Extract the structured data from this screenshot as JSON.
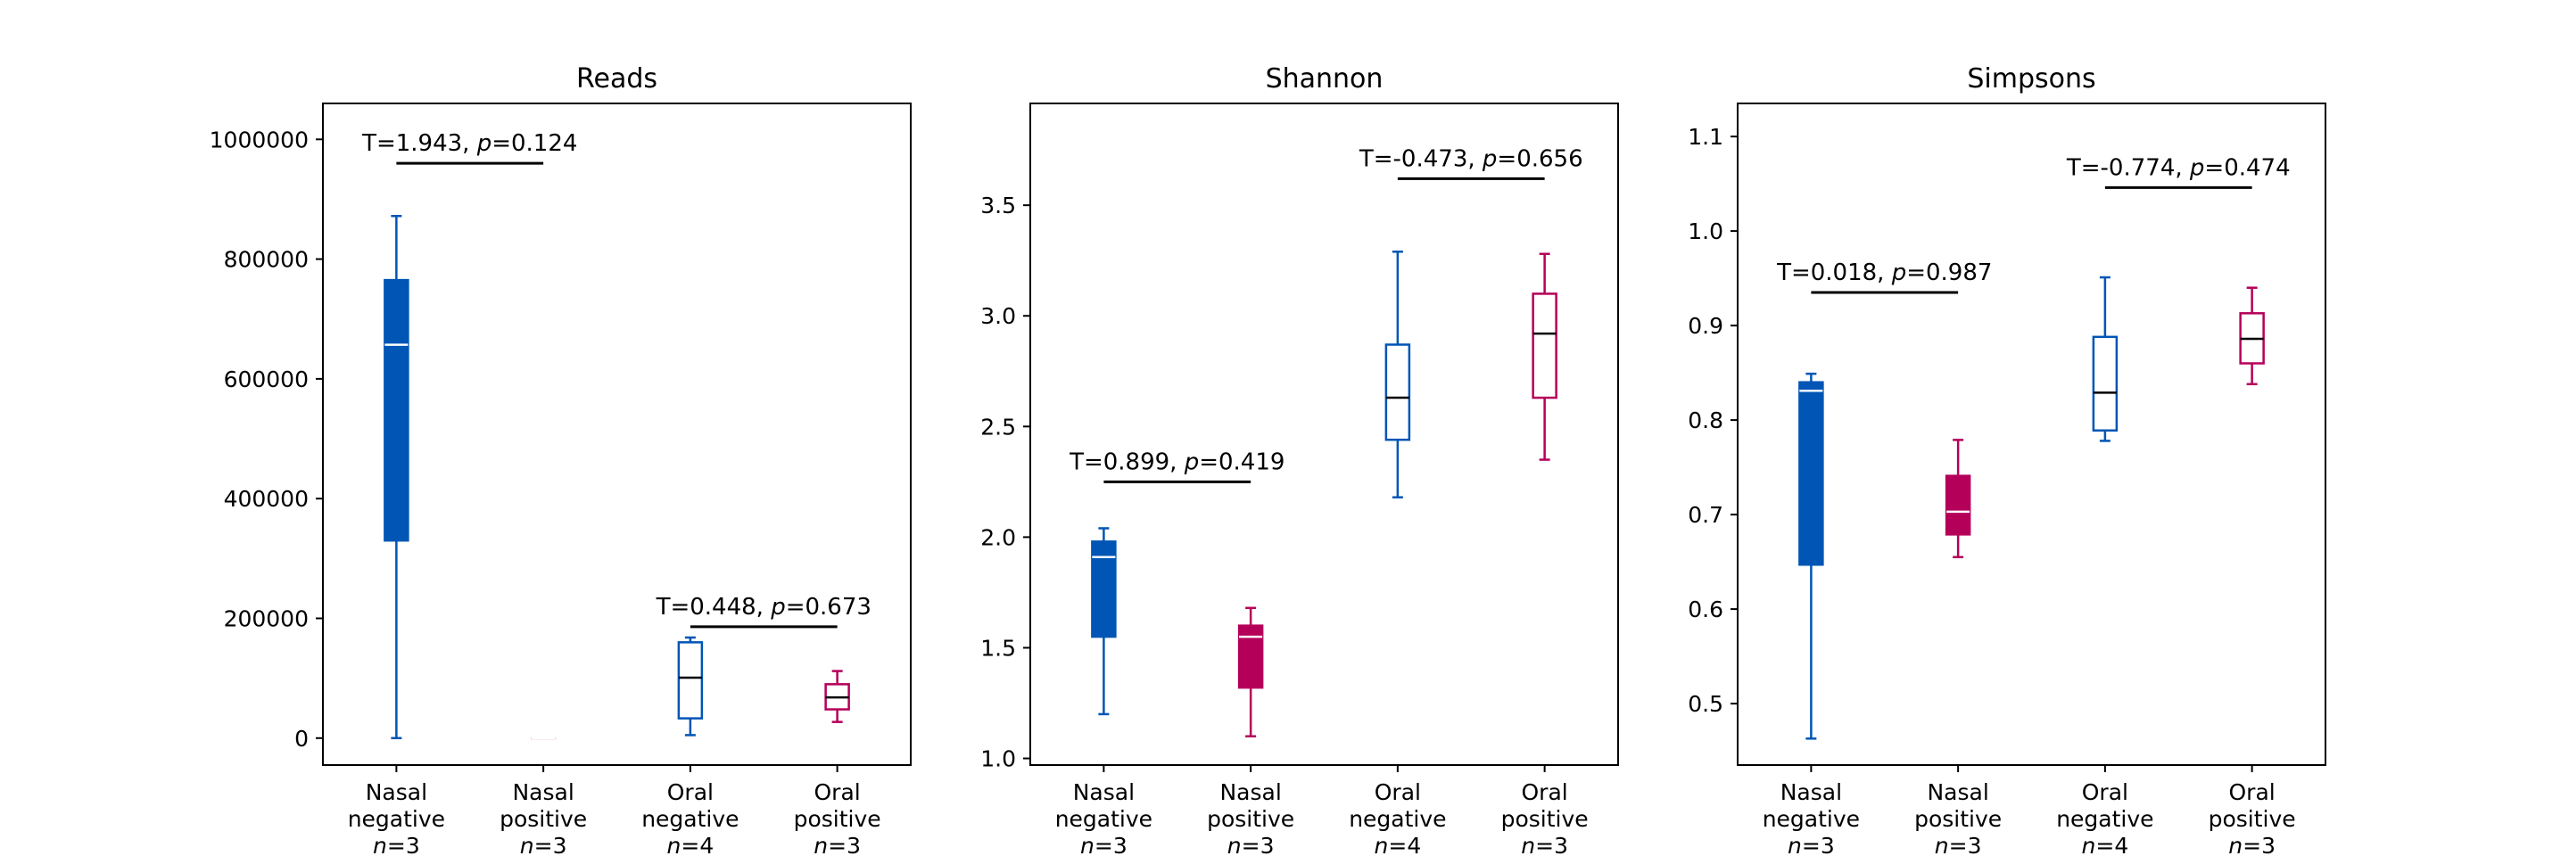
{
  "chart_data": [
    {
      "type": "box",
      "title": "Reads",
      "ylim": [
        -45000,
        1060000
      ],
      "yticks": [
        0,
        200000,
        400000,
        600000,
        800000,
        1000000
      ],
      "ytick_labels": [
        "0",
        "200000",
        "400000",
        "600000",
        "800000",
        "1000000"
      ],
      "categories": [
        {
          "line1": "Nasal",
          "line2": "negative",
          "n_label": "n",
          "n_value": "=3"
        },
        {
          "line1": "Nasal",
          "line2": "positive",
          "n_label": "n",
          "n_value": "=3"
        },
        {
          "line1": "Oral",
          "line2": "negative",
          "n_label": "n",
          "n_value": "=4"
        },
        {
          "line1": "Oral",
          "line2": "positive",
          "n_label": "n",
          "n_value": "=3"
        }
      ],
      "boxes": [
        {
          "whisker_low": 0,
          "q1": 330000,
          "median": 657000,
          "q3": 765000,
          "whisker_high": 872000,
          "color": "#0055b5",
          "filled": true
        },
        {
          "whisker_low": 0,
          "q1": 0,
          "median": 0,
          "q3": 0,
          "whisker_high": 0,
          "color": "#b5005a",
          "filled": true,
          "faint": true
        },
        {
          "whisker_low": 5000,
          "q1": 33000,
          "median": 101000,
          "q3": 160000,
          "whisker_high": 168000,
          "color": "#0055b5",
          "filled": false
        },
        {
          "whisker_low": 27000,
          "q1": 48000,
          "median": 68000,
          "q3": 90000,
          "whisker_high": 112000,
          "color": "#b5005a",
          "filled": false
        }
      ],
      "annotations": [
        {
          "from": 0,
          "to": 1,
          "y": 960000,
          "T_text": "T=1.943, ",
          "p_label": "p",
          "p_text": "=0.124"
        },
        {
          "from": 2,
          "to": 3,
          "y": 186000,
          "T_text": "T=0.448, ",
          "p_label": "p",
          "p_text": "=0.673"
        }
      ]
    },
    {
      "type": "box",
      "title": "Shannon",
      "ylim": [
        0.97,
        3.96
      ],
      "yticks": [
        1.0,
        1.5,
        2.0,
        2.5,
        3.0,
        3.5
      ],
      "ytick_labels": [
        "1.0",
        "1.5",
        "2.0",
        "2.5",
        "3.0",
        "3.5"
      ],
      "categories": [
        {
          "line1": "Nasal",
          "line2": "negative",
          "n_label": "n",
          "n_value": "=3"
        },
        {
          "line1": "Nasal",
          "line2": "positive",
          "n_label": "n",
          "n_value": "=3"
        },
        {
          "line1": "Oral",
          "line2": "negative",
          "n_label": "n",
          "n_value": "=4"
        },
        {
          "line1": "Oral",
          "line2": "positive",
          "n_label": "n",
          "n_value": "=3"
        }
      ],
      "boxes": [
        {
          "whisker_low": 1.2,
          "q1": 1.55,
          "median": 1.91,
          "q3": 1.98,
          "whisker_high": 2.04,
          "color": "#0055b5",
          "filled": true
        },
        {
          "whisker_low": 1.1,
          "q1": 1.32,
          "median": 1.55,
          "q3": 1.6,
          "whisker_high": 1.68,
          "color": "#b5005a",
          "filled": true
        },
        {
          "whisker_low": 2.18,
          "q1": 2.44,
          "median": 2.63,
          "q3": 2.87,
          "whisker_high": 3.29,
          "color": "#0055b5",
          "filled": false
        },
        {
          "whisker_low": 2.35,
          "q1": 2.63,
          "median": 2.92,
          "q3": 3.1,
          "whisker_high": 3.28,
          "color": "#b5005a",
          "filled": false
        }
      ],
      "annotations": [
        {
          "from": 0,
          "to": 1,
          "y": 2.25,
          "T_text": "T=0.899, ",
          "p_label": "p",
          "p_text": "=0.419"
        },
        {
          "from": 2,
          "to": 3,
          "y": 3.62,
          "T_text": "T=-0.473, ",
          "p_label": "p",
          "p_text": "=0.656"
        }
      ]
    },
    {
      "type": "box",
      "title": "Simpsons",
      "ylim": [
        0.435,
        1.135
      ],
      "yticks": [
        0.5,
        0.6,
        0.7,
        0.8,
        0.9,
        1.0,
        1.1
      ],
      "ytick_labels": [
        "0.5",
        "0.6",
        "0.7",
        "0.8",
        "0.9",
        "1.0",
        "1.1"
      ],
      "categories": [
        {
          "line1": "Nasal",
          "line2": "negative",
          "n_label": "n",
          "n_value": "=3"
        },
        {
          "line1": "Nasal",
          "line2": "positive",
          "n_label": "n",
          "n_value": "=3"
        },
        {
          "line1": "Oral",
          "line2": "negative",
          "n_label": "n",
          "n_value": "=4"
        },
        {
          "line1": "Oral",
          "line2": "positive",
          "n_label": "n",
          "n_value": "=3"
        }
      ],
      "boxes": [
        {
          "whisker_low": 0.463,
          "q1": 0.647,
          "median": 0.831,
          "q3": 0.84,
          "whisker_high": 0.849,
          "color": "#0055b5",
          "filled": true
        },
        {
          "whisker_low": 0.655,
          "q1": 0.679,
          "median": 0.703,
          "q3": 0.741,
          "whisker_high": 0.779,
          "color": "#b5005a",
          "filled": true
        },
        {
          "whisker_low": 0.778,
          "q1": 0.789,
          "median": 0.829,
          "q3": 0.888,
          "whisker_high": 0.951,
          "color": "#0055b5",
          "filled": false
        },
        {
          "whisker_low": 0.838,
          "q1": 0.86,
          "median": 0.886,
          "q3": 0.913,
          "whisker_high": 0.94,
          "color": "#b5005a",
          "filled": false
        }
      ],
      "annotations": [
        {
          "from": 0,
          "to": 1,
          "y": 0.935,
          "T_text": "T=0.018, ",
          "p_label": "p",
          "p_text": "=0.987"
        },
        {
          "from": 2,
          "to": 3,
          "y": 1.046,
          "T_text": "T=-0.774, ",
          "p_label": "p",
          "p_text": "=0.474"
        }
      ]
    }
  ]
}
